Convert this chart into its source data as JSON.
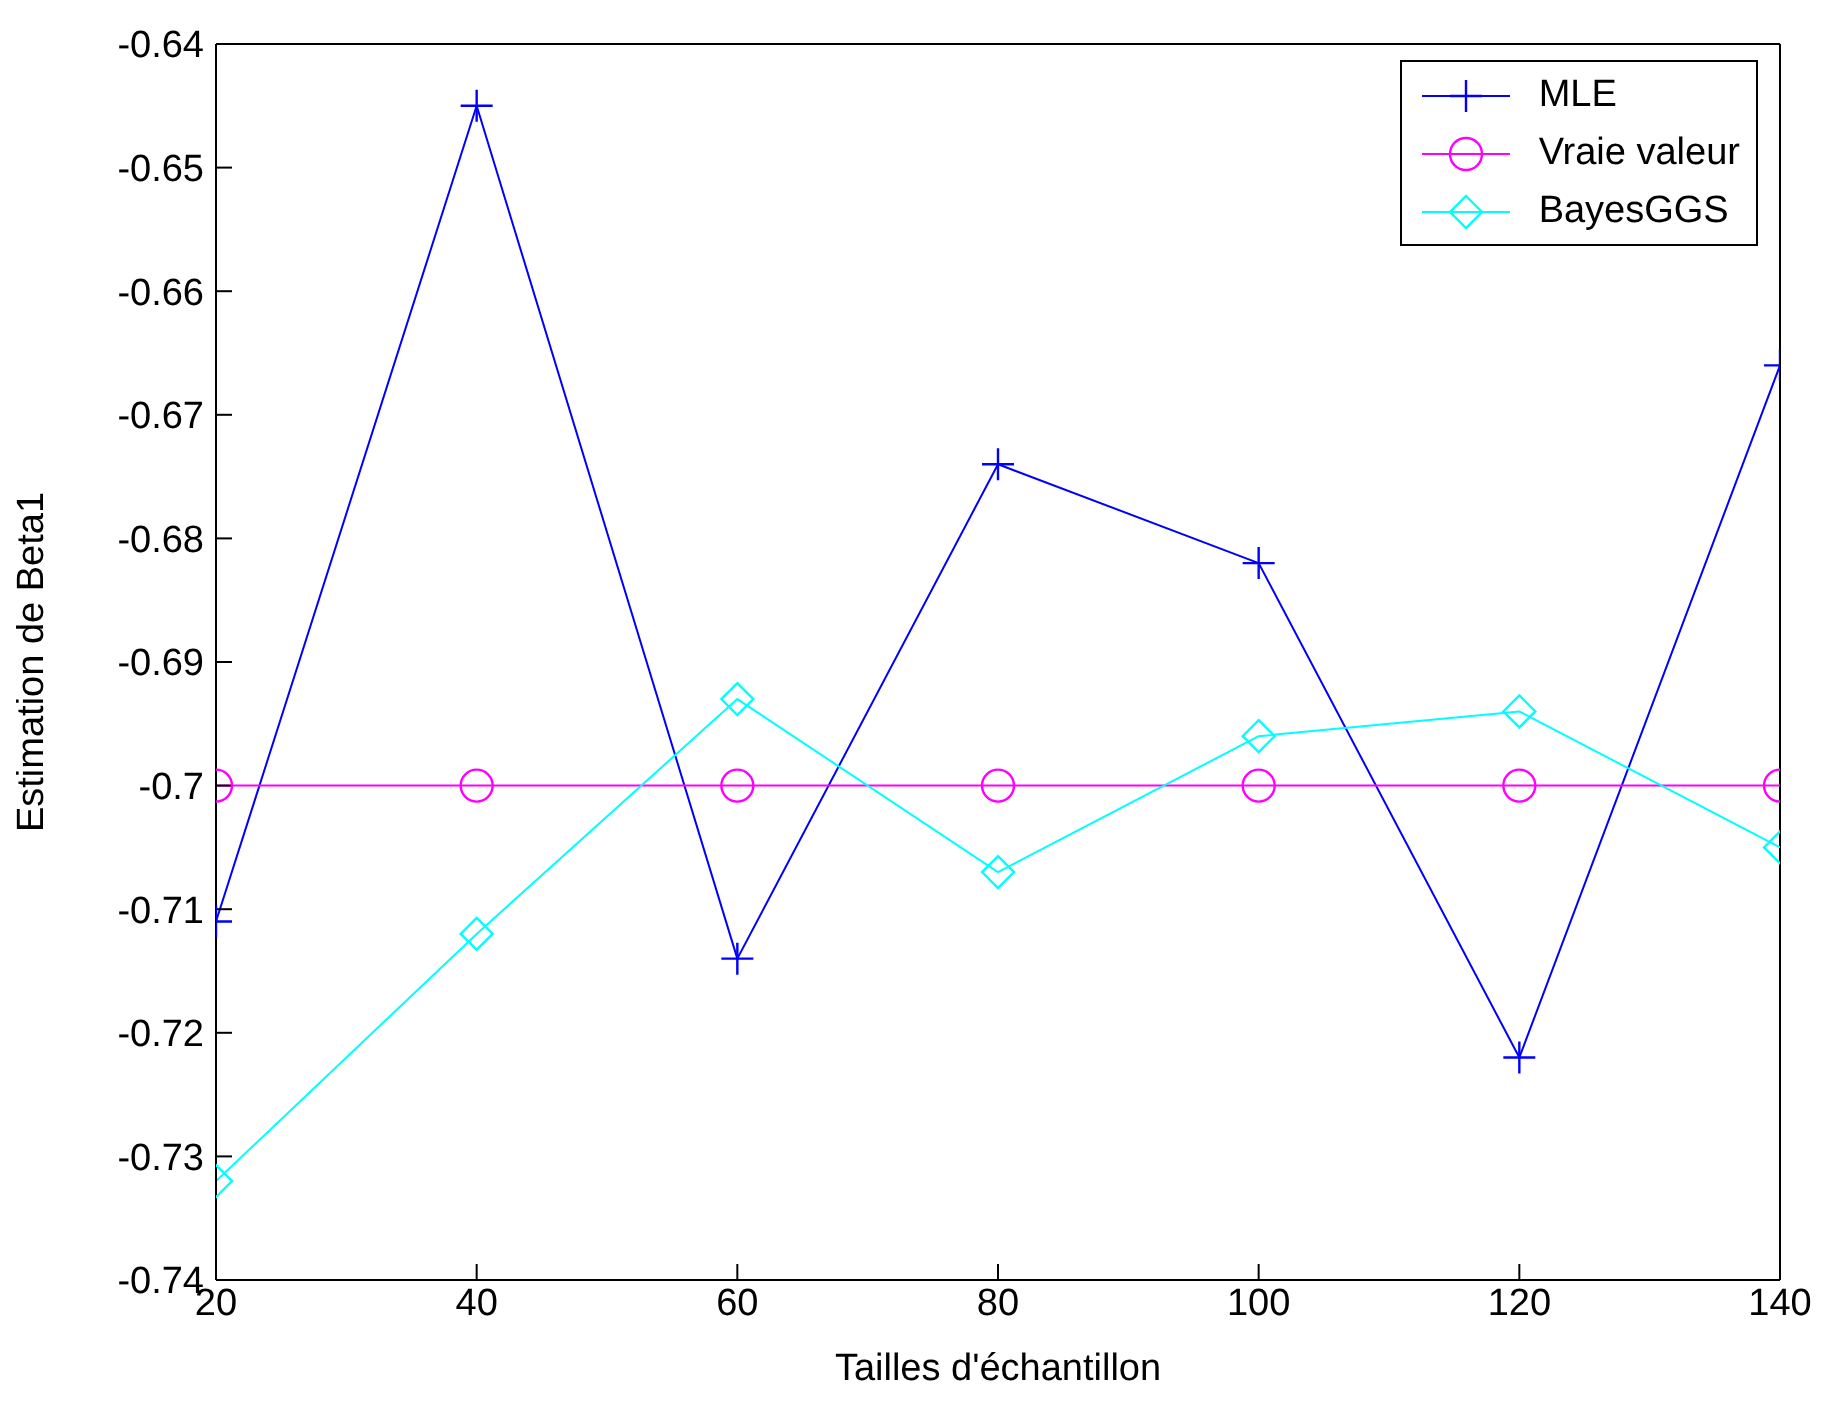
{
  "chart_data": {
    "type": "line",
    "xlabel": "Tailles d'échantillon",
    "ylabel": "Estimation de Beta1",
    "x": [
      20,
      40,
      60,
      80,
      100,
      120,
      140
    ],
    "series": [
      {
        "name": "MLE",
        "color": "#0000ff",
        "marker": "cross",
        "values": [
          -0.711,
          -0.645,
          -0.714,
          -0.674,
          -0.682,
          -0.722,
          -0.666
        ]
      },
      {
        "name": "Vraie valeur",
        "color": "#ff00ff",
        "marker": "circle",
        "values": [
          -0.7,
          -0.7,
          -0.7,
          -0.7,
          -0.7,
          -0.7,
          -0.7
        ]
      },
      {
        "name": "BayesGGS",
        "color": "#00ffff",
        "marker": "diamond",
        "values": [
          -0.732,
          -0.712,
          -0.693,
          -0.707,
          -0.696,
          -0.694,
          -0.705
        ]
      }
    ],
    "xlim": [
      20,
      140
    ],
    "xticks": [
      20,
      40,
      60,
      80,
      100,
      120,
      140
    ],
    "ylim": [
      -0.74,
      -0.64
    ],
    "yticks": [
      -0.74,
      -0.73,
      -0.72,
      -0.71,
      -0.7,
      -0.69,
      -0.68,
      -0.67,
      -0.66,
      -0.65,
      -0.64
    ],
    "grid": false,
    "legend": "top right"
  }
}
